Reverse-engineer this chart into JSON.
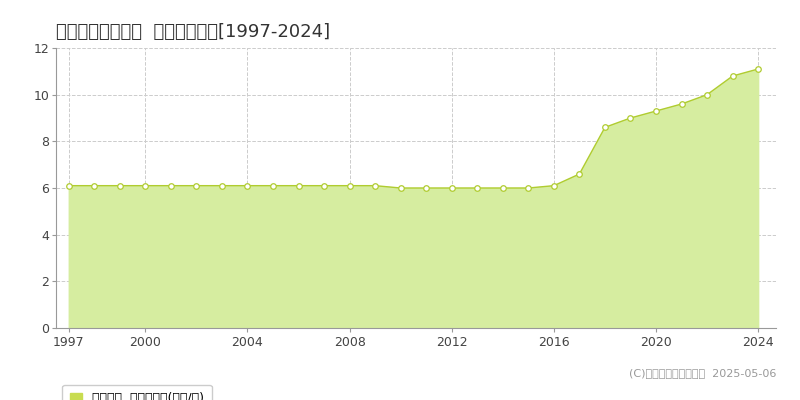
{
  "title": "国頭郡金武町屋嘉  基準地価推移[1997-2024]",
  "years": [
    1997,
    1998,
    1999,
    2000,
    2001,
    2002,
    2003,
    2004,
    2005,
    2006,
    2007,
    2008,
    2009,
    2010,
    2011,
    2012,
    2013,
    2014,
    2015,
    2016,
    2017,
    2018,
    2019,
    2020,
    2021,
    2022,
    2023,
    2024
  ],
  "values": [
    6.1,
    6.1,
    6.1,
    6.1,
    6.1,
    6.1,
    6.1,
    6.1,
    6.1,
    6.1,
    6.1,
    6.1,
    6.1,
    6.0,
    6.0,
    6.0,
    6.0,
    6.0,
    6.0,
    6.1,
    6.6,
    8.6,
    9.0,
    9.3,
    9.6,
    10.0,
    10.8,
    11.1
  ],
  "fill_color": "#d6eda0",
  "line_color": "#b0cc30",
  "marker_facecolor": "#ffffff",
  "marker_edgecolor": "#b0cc30",
  "background_color": "#ffffff",
  "plot_bg_color": "#f5f5f5",
  "grid_color": "#cccccc",
  "spine_color": "#999999",
  "ylim": [
    0,
    12
  ],
  "yticks": [
    0,
    2,
    4,
    6,
    8,
    10,
    12
  ],
  "xticks": [
    1997,
    2000,
    2004,
    2008,
    2012,
    2016,
    2020,
    2024
  ],
  "legend_label": "基準地価  平均坪単価(万円/坪)",
  "legend_marker_color": "#c8dc50",
  "copyright_text": "(C)土地価格ドットコム  2025-05-06",
  "title_fontsize": 13,
  "tick_fontsize": 9,
  "legend_fontsize": 9,
  "copyright_fontsize": 8
}
